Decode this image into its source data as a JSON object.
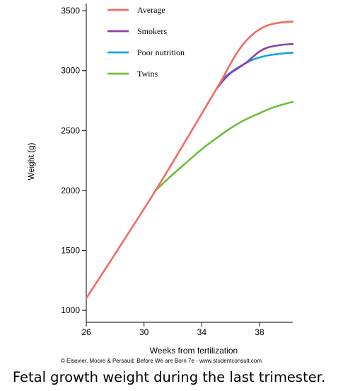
{
  "caption": "Fetal growth weight during the last trimester.",
  "colors": {
    "average": "#f26b63",
    "smokers": "#8e3fa6",
    "poor_nutrition": "#1aa3e0",
    "twins": "#6cbf3a"
  },
  "chart_data": {
    "type": "line",
    "title": "",
    "xlabel": "Weeks from fertilization",
    "ylabel": "Weight (g)",
    "xlim": [
      26,
      40.3
    ],
    "ylim": [
      900,
      3560
    ],
    "xticks": [
      26,
      30,
      34,
      38
    ],
    "yticks": [
      1000,
      1500,
      2000,
      2500,
      3000,
      3500
    ],
    "grid": false,
    "legend": "top-left",
    "credit": "© Elsevier. Moore & Persaud: Before We are Born 7e - www.studentconsult.com",
    "series": [
      {
        "name": "Average",
        "key": "average",
        "x": [
          26,
          30.8,
          35,
          35.5,
          36,
          36.5,
          37,
          37.5,
          38,
          38.5,
          39,
          39.5,
          40,
          40.3
        ],
        "y": [
          1100,
          2000,
          2845,
          2950,
          3060,
          3160,
          3240,
          3300,
          3345,
          3375,
          3392,
          3402,
          3408,
          3410
        ]
      },
      {
        "name": "Smokers",
        "key": "smokers",
        "x": [
          35,
          35.5,
          36,
          36.5,
          37,
          37.5,
          38,
          38.5,
          39,
          39.5,
          40,
          40.3
        ],
        "y": [
          2845,
          2920,
          2980,
          3020,
          3060,
          3110,
          3160,
          3190,
          3205,
          3215,
          3220,
          3222
        ]
      },
      {
        "name": "Poor nutrition",
        "key": "poor_nutrition",
        "x": [
          35,
          35.5,
          36,
          36.5,
          37,
          37.5,
          38,
          38.5,
          39,
          39.5,
          40,
          40.3
        ],
        "y": [
          2845,
          2935,
          2985,
          3025,
          3060,
          3090,
          3110,
          3125,
          3135,
          3142,
          3148,
          3150
        ]
      },
      {
        "name": "Twins",
        "key": "twins",
        "x": [
          30.8,
          31.5,
          32,
          33,
          34,
          35,
          36,
          37,
          38,
          39,
          40,
          40.3
        ],
        "y": [
          2000,
          2080,
          2135,
          2240,
          2345,
          2435,
          2520,
          2590,
          2645,
          2695,
          2730,
          2740
        ]
      }
    ]
  }
}
